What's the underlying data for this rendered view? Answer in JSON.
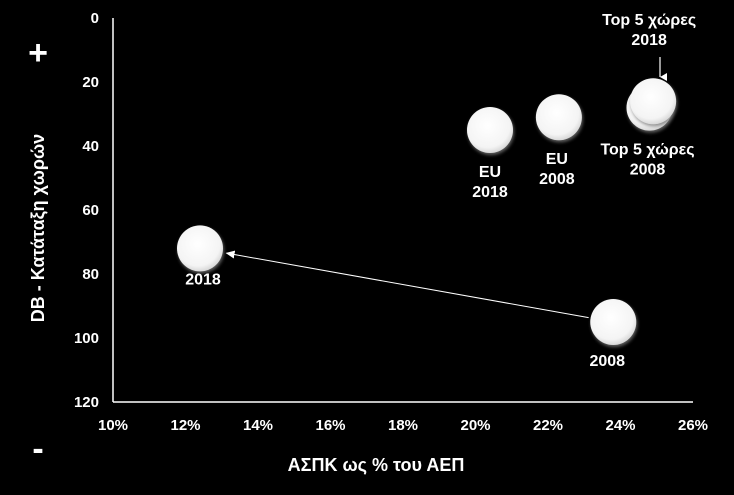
{
  "chart_data": {
    "type": "scatter",
    "title": "",
    "xlabel": "ΑΣΠΚ ως % του ΑΕΠ",
    "ylabel": "DB - Κατάταξη χωρών",
    "xlim": [
      0.1,
      0.26
    ],
    "ylim": [
      0,
      120
    ],
    "y_inverted": true,
    "grid": false,
    "x_ticks": [
      "10%",
      "12%",
      "14%",
      "16%",
      "18%",
      "20%",
      "22%",
      "24%",
      "26%"
    ],
    "y_ticks": [
      "0",
      "20",
      "40",
      "60",
      "80",
      "100",
      "120"
    ],
    "points": [
      {
        "x": 0.124,
        "y": 72,
        "label": "2018"
      },
      {
        "x": 0.238,
        "y": 95,
        "label": "2008"
      },
      {
        "x": 0.204,
        "y": 35,
        "label": "EU 2018"
      },
      {
        "x": 0.223,
        "y": 31,
        "label": "EU 2008"
      },
      {
        "x": 0.249,
        "y": 26,
        "label": "Top 5 χώρες 2018"
      },
      {
        "x": 0.248,
        "y": 28,
        "label": "Top 5 χώρες 2008"
      }
    ],
    "arrow": {
      "from_point": 1,
      "to_point": 0
    },
    "sign_top": "+",
    "sign_bottom": "-",
    "colors": {
      "background": "#000000",
      "foreground": "#ffffff",
      "marker": "#ffffff"
    }
  }
}
